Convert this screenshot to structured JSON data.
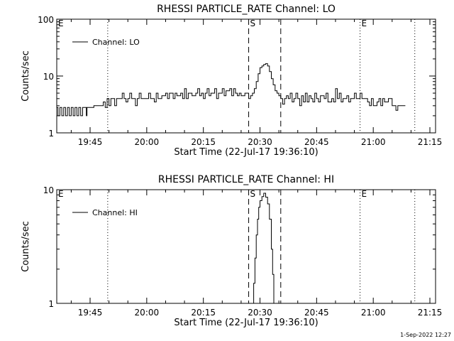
{
  "footer_date": "1-Sep-2022 12:27",
  "chart_data": [
    {
      "type": "line",
      "title": "RHESSI PARTICLE_RATE Channel: LO",
      "xlabel": "Start Time (22-Jul-17 19:36:10)",
      "ylabel": "Counts/sec",
      "y_scale": "log",
      "ylim": [
        1,
        100
      ],
      "y_ticks": [
        1,
        10,
        100
      ],
      "y_tick_labels": [
        "1",
        "10",
        "100"
      ],
      "xlim": [
        "19:36:10",
        "21:16:30"
      ],
      "x_ticks": [
        "19:45",
        "20:00",
        "20:15",
        "20:30",
        "20:45",
        "21:00",
        "21:15"
      ],
      "legend": {
        "position": "top-left",
        "entries": [
          "Channel: LO"
        ]
      },
      "markers": [
        {
          "label": "E",
          "time": "19:36:10",
          "style": "dotted"
        },
        {
          "label": "",
          "time": "19:49:40",
          "style": "dotted"
        },
        {
          "label": "S",
          "time": "20:27:00",
          "style": "dashed"
        },
        {
          "label": "",
          "time": "20:35:30",
          "style": "dashed"
        },
        {
          "label": "E",
          "time": "20:56:30",
          "style": "dotted"
        },
        {
          "label": "",
          "time": "21:11:00",
          "style": "dotted"
        }
      ],
      "series": [
        {
          "name": "Channel: LO",
          "color": "#000000",
          "points": [
            [
              "19:36:10",
              2.8
            ],
            [
              "19:36:30",
              2.0
            ],
            [
              "19:37:00",
              2.8
            ],
            [
              "19:37:30",
              2.0
            ],
            [
              "19:38:00",
              2.8
            ],
            [
              "19:38:30",
              2.0
            ],
            [
              "19:39:00",
              2.8
            ],
            [
              "19:39:30",
              2.0
            ],
            [
              "19:40:00",
              2.8
            ],
            [
              "19:40:30",
              2.0
            ],
            [
              "19:41:00",
              2.8
            ],
            [
              "19:41:30",
              2.0
            ],
            [
              "19:42:00",
              2.8
            ],
            [
              "19:42:30",
              2.0
            ],
            [
              "19:43:00",
              2.8
            ],
            [
              "19:43:30",
              2.8
            ],
            [
              "19:44:00",
              2.0
            ],
            [
              "19:44:10",
              2.8
            ],
            [
              "19:46:00",
              3.0
            ],
            [
              "19:48:00",
              3.0
            ],
            [
              "19:48:30",
              3.5
            ],
            [
              "19:49:00",
              2.8
            ],
            [
              "19:49:30",
              4.0
            ],
            [
              "19:50:00",
              3.0
            ],
            [
              "19:50:30",
              4.0
            ],
            [
              "19:51:00",
              4.0
            ],
            [
              "19:51:30",
              3.0
            ],
            [
              "19:52:00",
              4.0
            ],
            [
              "19:53:00",
              4.0
            ],
            [
              "19:53:30",
              5.0
            ],
            [
              "19:54:00",
              4.0
            ],
            [
              "19:54:30",
              3.5
            ],
            [
              "19:55:00",
              4.0
            ],
            [
              "19:55:30",
              5.0
            ],
            [
              "19:56:00",
              4.0
            ],
            [
              "19:57:00",
              3.0
            ],
            [
              "19:57:30",
              4.0
            ],
            [
              "19:58:00",
              5.0
            ],
            [
              "19:58:30",
              4.0
            ],
            [
              "19:59:00",
              4.0
            ],
            [
              "20:00:00",
              4.0
            ],
            [
              "20:00:30",
              5.0
            ],
            [
              "20:01:00",
              4.0
            ],
            [
              "20:02:00",
              3.5
            ],
            [
              "20:02:30",
              5.0
            ],
            [
              "20:03:00",
              4.0
            ],
            [
              "20:04:00",
              4.5
            ],
            [
              "20:05:00",
              5.0
            ],
            [
              "20:05:30",
              4.0
            ],
            [
              "20:06:00",
              5.0
            ],
            [
              "20:07:00",
              4.0
            ],
            [
              "20:07:30",
              5.0
            ],
            [
              "20:08:00",
              4.5
            ],
            [
              "20:09:00",
              5.0
            ],
            [
              "20:09:30",
              4.0
            ],
            [
              "20:10:00",
              6.0
            ],
            [
              "20:10:30",
              4.0
            ],
            [
              "20:11:00",
              5.0
            ],
            [
              "20:12:00",
              4.5
            ],
            [
              "20:13:00",
              5.0
            ],
            [
              "20:13:30",
              6.0
            ],
            [
              "20:14:00",
              4.5
            ],
            [
              "20:14:30",
              5.0
            ],
            [
              "20:15:00",
              4.0
            ],
            [
              "20:15:30",
              5.0
            ],
            [
              "20:16:00",
              6.0
            ],
            [
              "20:16:30",
              4.5
            ],
            [
              "20:17:00",
              5.0
            ],
            [
              "20:18:00",
              6.0
            ],
            [
              "20:18:30",
              4.0
            ],
            [
              "20:19:00",
              5.0
            ],
            [
              "20:19:30",
              5.0
            ],
            [
              "20:20:00",
              6.0
            ],
            [
              "20:20:30",
              4.5
            ],
            [
              "20:21:00",
              5.5
            ],
            [
              "20:22:00",
              6.0
            ],
            [
              "20:22:30",
              4.5
            ],
            [
              "20:23:00",
              6.0
            ],
            [
              "20:23:30",
              5.0
            ],
            [
              "20:24:00",
              4.5
            ],
            [
              "20:24:30",
              5.0
            ],
            [
              "20:25:00",
              4.5
            ],
            [
              "20:26:00",
              5.0
            ],
            [
              "20:27:00",
              4.0
            ],
            [
              "20:27:30",
              4.5
            ],
            [
              "20:28:00",
              5.0
            ],
            [
              "20:28:30",
              6.0
            ],
            [
              "20:29:00",
              8.0
            ],
            [
              "20:29:30",
              11.0
            ],
            [
              "20:30:00",
              14.0
            ],
            [
              "20:30:30",
              15.0
            ],
            [
              "20:31:00",
              16.0
            ],
            [
              "20:31:30",
              16.5
            ],
            [
              "20:32:00",
              15.0
            ],
            [
              "20:32:30",
              12.0
            ],
            [
              "20:33:00",
              9.0
            ],
            [
              "20:33:30",
              7.0
            ],
            [
              "20:34:00",
              5.5
            ],
            [
              "20:34:30",
              5.0
            ],
            [
              "20:35:00",
              4.5
            ],
            [
              "20:35:30",
              4.0
            ],
            [
              "20:36:00",
              3.2
            ],
            [
              "20:36:30",
              4.0
            ],
            [
              "20:37:00",
              4.5
            ],
            [
              "20:37:30",
              4.0
            ],
            [
              "20:38:00",
              5.0
            ],
            [
              "20:38:30",
              3.5
            ],
            [
              "20:39:00",
              4.0
            ],
            [
              "20:39:30",
              5.0
            ],
            [
              "20:40:00",
              4.0
            ],
            [
              "20:40:30",
              3.0
            ],
            [
              "20:41:00",
              4.5
            ],
            [
              "20:41:30",
              3.5
            ],
            [
              "20:42:00",
              5.0
            ],
            [
              "20:42:30",
              3.5
            ],
            [
              "20:43:00",
              4.5
            ],
            [
              "20:43:30",
              4.0
            ],
            [
              "20:44:00",
              3.5
            ],
            [
              "20:44:30",
              5.0
            ],
            [
              "20:45:00",
              4.0
            ],
            [
              "20:45:30",
              3.5
            ],
            [
              "20:46:00",
              4.5
            ],
            [
              "20:47:00",
              4.0
            ],
            [
              "20:47:30",
              5.0
            ],
            [
              "20:48:00",
              3.5
            ],
            [
              "20:49:00",
              4.0
            ],
            [
              "20:49:30",
              3.5
            ],
            [
              "20:50:00",
              6.0
            ],
            [
              "20:50:30",
              4.0
            ],
            [
              "20:51:00",
              5.0
            ],
            [
              "20:51:30",
              3.5
            ],
            [
              "20:52:00",
              4.0
            ],
            [
              "20:53:00",
              4.5
            ],
            [
              "20:53:30",
              3.5
            ],
            [
              "20:54:00",
              4.0
            ],
            [
              "20:55:00",
              5.0
            ],
            [
              "20:55:30",
              4.0
            ],
            [
              "20:56:00",
              4.0
            ],
            [
              "20:56:30",
              5.0
            ],
            [
              "20:57:00",
              4.0
            ],
            [
              "20:58:00",
              4.0
            ],
            [
              "20:58:30",
              3.5
            ],
            [
              "20:59:00",
              3.0
            ],
            [
              "20:59:30",
              4.0
            ],
            [
              "21:00:00",
              3.0
            ],
            [
              "21:01:00",
              3.5
            ],
            [
              "21:01:30",
              4.0
            ],
            [
              "21:02:00",
              3.0
            ],
            [
              "21:02:30",
              4.0
            ],
            [
              "21:03:00",
              3.5
            ],
            [
              "21:04:00",
              4.0
            ],
            [
              "21:05:00",
              3.0
            ],
            [
              "21:05:30",
              3.0
            ],
            [
              "21:06:00",
              2.5
            ],
            [
              "21:06:30",
              3.0
            ],
            [
              "21:08:30",
              3.0
            ]
          ]
        }
      ]
    },
    {
      "type": "line",
      "title": "RHESSI PARTICLE_RATE Channel: HI",
      "xlabel": "Start Time (22-Jul-17 19:36:10)",
      "ylabel": "Counts/sec",
      "y_scale": "log",
      "ylim": [
        1,
        10
      ],
      "y_ticks": [
        1,
        10
      ],
      "y_tick_labels": [
        "1",
        "10"
      ],
      "xlim": [
        "19:36:10",
        "21:16:30"
      ],
      "x_ticks": [
        "19:45",
        "20:00",
        "20:15",
        "20:30",
        "20:45",
        "21:00",
        "21:15"
      ],
      "legend": {
        "position": "top-left",
        "entries": [
          "Channel: HI"
        ]
      },
      "markers": [
        {
          "label": "E",
          "time": "19:36:10",
          "style": "dotted"
        },
        {
          "label": "",
          "time": "19:49:40",
          "style": "dotted"
        },
        {
          "label": "S",
          "time": "20:27:00",
          "style": "dashed"
        },
        {
          "label": "",
          "time": "20:35:30",
          "style": "dashed"
        },
        {
          "label": "E",
          "time": "20:56:30",
          "style": "dotted"
        },
        {
          "label": "",
          "time": "21:11:00",
          "style": "dotted"
        }
      ],
      "series": [
        {
          "name": "Channel: HI",
          "color": "#000000",
          "points": [
            [
              "20:28:00",
              1.0
            ],
            [
              "20:28:20",
              1.5
            ],
            [
              "20:28:40",
              2.5
            ],
            [
              "20:29:00",
              4.0
            ],
            [
              "20:29:20",
              5.5
            ],
            [
              "20:29:40",
              7.0
            ],
            [
              "20:30:00",
              8.0
            ],
            [
              "20:30:30",
              8.7
            ],
            [
              "20:31:00",
              9.3
            ],
            [
              "20:31:30",
              8.6
            ],
            [
              "20:32:00",
              7.5
            ],
            [
              "20:32:30",
              5.5
            ],
            [
              "20:33:00",
              3.0
            ],
            [
              "20:33:20",
              1.8
            ],
            [
              "20:33:40",
              1.0
            ]
          ]
        }
      ]
    }
  ]
}
